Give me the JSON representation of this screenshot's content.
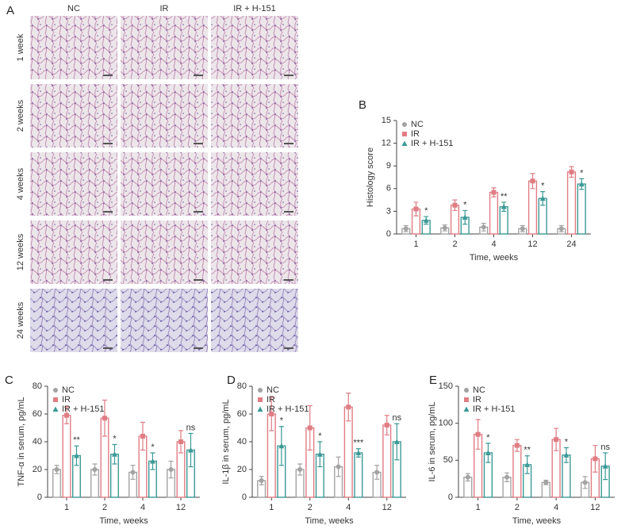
{
  "histology": {
    "panel": "A",
    "columns": [
      "NC",
      "IR",
      "IR + H-151"
    ],
    "rows": [
      "1 week",
      "2 weeks",
      "4 weeks",
      "12 weeks",
      "24 weeks"
    ]
  },
  "chart_data": [
    {
      "type": "bar",
      "panel": "B",
      "ylabel": "Histology score",
      "xlabel": "Time, weeks",
      "categories": [
        "1",
        "2",
        "4",
        "12",
        "24"
      ],
      "ylim": [
        0,
        15
      ],
      "yticks": [
        0,
        3,
        6,
        9,
        12,
        15
      ],
      "series": [
        {
          "name": "NC",
          "color": "#a3a3a3",
          "values": [
            0.7,
            0.8,
            0.9,
            0.7,
            0.7
          ],
          "errors": [
            0.4,
            0.4,
            0.5,
            0.4,
            0.4
          ]
        },
        {
          "name": "IR",
          "color": "#e07d84",
          "values": [
            3.3,
            3.8,
            5.5,
            7.0,
            8.2
          ],
          "errors": [
            0.9,
            0.7,
            0.6,
            1.0,
            0.7
          ]
        },
        {
          "name": "IR + H-151",
          "color": "#3a9a96",
          "values": [
            1.8,
            2.2,
            3.6,
            4.7,
            6.6
          ],
          "errors": [
            0.5,
            0.9,
            0.6,
            0.9,
            0.7
          ],
          "annotations": [
            "*",
            "*",
            "**",
            "*",
            "*"
          ]
        }
      ]
    },
    {
      "type": "bar",
      "panel": "C",
      "ylabel": "TNF-α in serum, pg/mL",
      "xlabel": "Time, weeks",
      "categories": [
        "1",
        "2",
        "4",
        "12"
      ],
      "ylim": [
        0,
        80
      ],
      "yticks": [
        0,
        20,
        40,
        60,
        80
      ],
      "series": [
        {
          "name": "NC",
          "color": "#a3a3a3",
          "values": [
            20,
            20,
            18,
            20
          ],
          "errors": [
            3,
            4,
            5,
            6
          ]
        },
        {
          "name": "IR",
          "color": "#e07d84",
          "values": [
            59,
            57,
            44,
            40
          ],
          "errors": [
            6,
            13,
            10,
            8
          ]
        },
        {
          "name": "IR + H-151",
          "color": "#3a9a96",
          "values": [
            30,
            31,
            26,
            34
          ],
          "errors": [
            7,
            7,
            6,
            12
          ],
          "annotations": [
            "**",
            "*",
            "*",
            "ns"
          ]
        }
      ]
    },
    {
      "type": "bar",
      "panel": "D",
      "ylabel": "IL-1β in serum, pg/mL",
      "xlabel": "Time, weeks",
      "categories": [
        "1",
        "2",
        "4",
        "12"
      ],
      "ylim": [
        0,
        80
      ],
      "yticks": [
        0,
        20,
        40,
        60,
        80
      ],
      "series": [
        {
          "name": "NC",
          "color": "#a3a3a3",
          "values": [
            12,
            20,
            22,
            18
          ],
          "errors": [
            3,
            4,
            7,
            5
          ]
        },
        {
          "name": "IR",
          "color": "#e07d84",
          "values": [
            60,
            50,
            65,
            52
          ],
          "errors": [
            12,
            16,
            10,
            7
          ]
        },
        {
          "name": "IR + H-151",
          "color": "#3a9a96",
          "values": [
            37,
            31,
            32,
            40
          ],
          "errors": [
            14,
            9,
            3,
            13
          ],
          "annotations": [
            "*",
            "*",
            "***",
            "ns"
          ]
        }
      ]
    },
    {
      "type": "bar",
      "panel": "E",
      "ylabel": "IL-6 in serum, pg/mL",
      "xlabel": "Time, weeks",
      "categories": [
        "1",
        "2",
        "4",
        "12"
      ],
      "ylim": [
        0,
        150
      ],
      "yticks": [
        0,
        50,
        100,
        150
      ],
      "series": [
        {
          "name": "NC",
          "color": "#a3a3a3",
          "values": [
            27,
            27,
            20,
            20
          ],
          "errors": [
            5,
            6,
            3,
            8
          ]
        },
        {
          "name": "IR",
          "color": "#e07d84",
          "values": [
            85,
            70,
            78,
            52
          ],
          "errors": [
            20,
            8,
            15,
            18
          ]
        },
        {
          "name": "IR + H-151",
          "color": "#3a9a96",
          "values": [
            60,
            44,
            57,
            42
          ],
          "errors": [
            13,
            12,
            10,
            18
          ],
          "annotations": [
            "*",
            "**",
            "*",
            "ns"
          ]
        }
      ]
    }
  ]
}
